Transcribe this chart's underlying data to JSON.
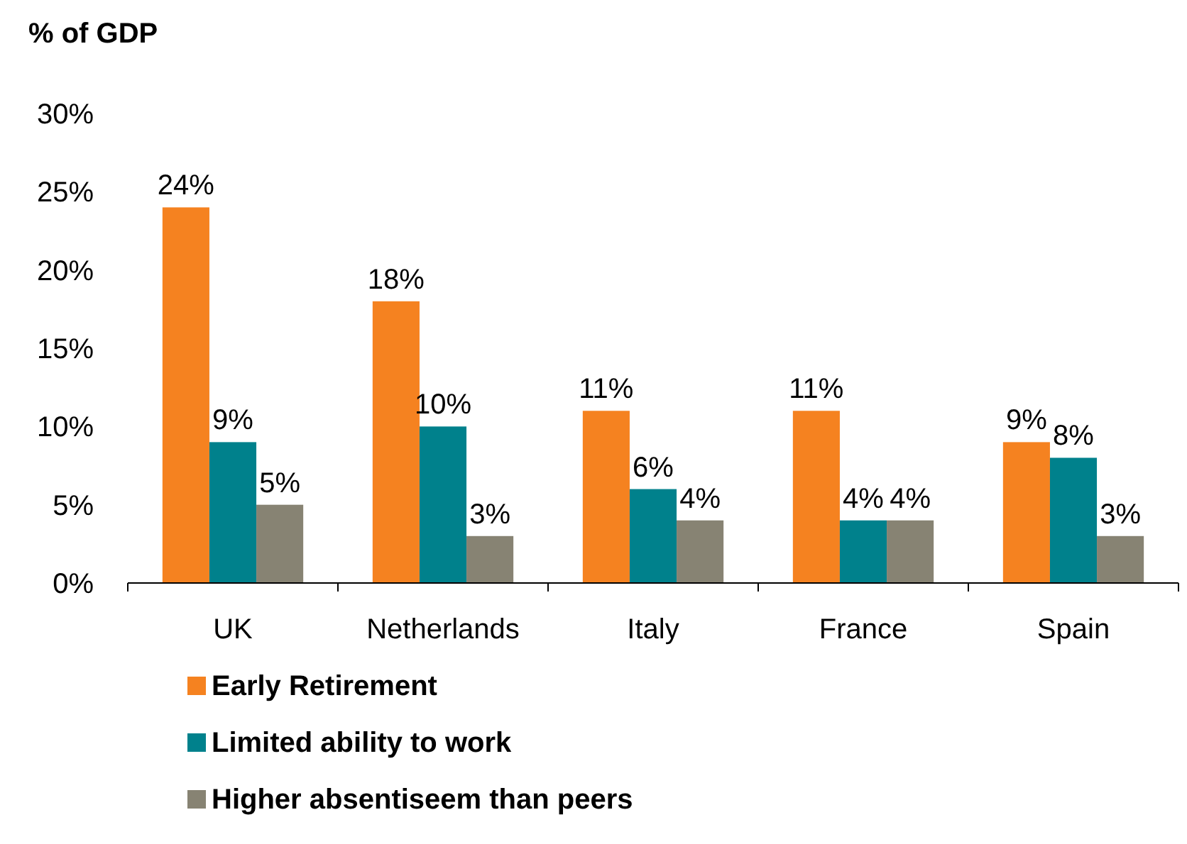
{
  "chart_data": {
    "type": "bar",
    "title": "% of GDP",
    "categories": [
      "UK",
      "Netherlands",
      "Italy",
      "France",
      "Spain"
    ],
    "series": [
      {
        "name": "Early Retirement",
        "color": "#f58220",
        "values": [
          24,
          18,
          11,
          11,
          9
        ],
        "value_labels": [
          "24%",
          "18%",
          "11%",
          "11%",
          "9%"
        ]
      },
      {
        "name": "Limited ability to work",
        "color": "#00818c",
        "values": [
          9,
          10,
          6,
          4,
          8
        ],
        "value_labels": [
          "9%",
          "10%",
          "6%",
          "4%",
          "8%"
        ]
      },
      {
        "name": "Higher absentiseem than peers",
        "color": "#878373",
        "values": [
          5,
          3,
          4,
          4,
          3
        ],
        "value_labels": [
          "5%",
          "3%",
          "4%",
          "4%",
          "3%"
        ]
      }
    ],
    "ylim": [
      0,
      30
    ],
    "yticks": [
      {
        "value": 0,
        "label": "0%"
      },
      {
        "value": 5,
        "label": "5%"
      },
      {
        "value": 10,
        "label": "10%"
      },
      {
        "value": 15,
        "label": "15%"
      },
      {
        "value": 20,
        "label": "20%"
      },
      {
        "value": 25,
        "label": "25%"
      },
      {
        "value": 30,
        "label": "30%"
      }
    ],
    "grid": false,
    "legend": "bottom"
  }
}
